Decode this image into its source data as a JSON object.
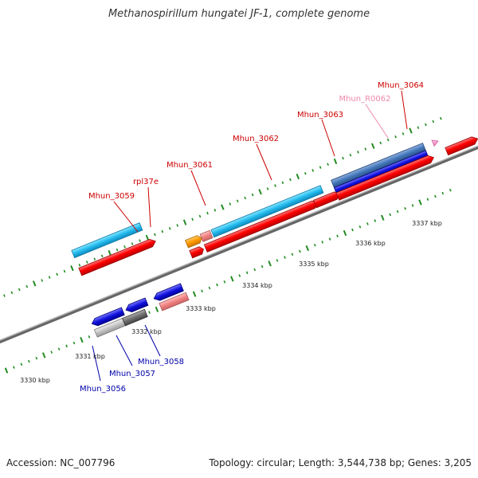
{
  "title": "Methanospirillum hungatei JF-1, complete genome",
  "footer": {
    "accession": "Accession: NC_007796",
    "topology": "Topology: circular; Length: 3,544,738 bp; Genes: 3,205"
  },
  "colors": {
    "forward_label": "#cc0000",
    "reverse_label": "#0000aa",
    "rna_label": "#ee88aa",
    "backbone": "#888888",
    "tick": "#228b22"
  },
  "scale": {
    "labels": [
      "3330 kbp",
      "3331 kbp",
      "3332 kbp",
      "3333 kbp",
      "3334 kbp",
      "3335 kbp",
      "3336 kbp",
      "3337 kbp"
    ]
  },
  "forward_genes": [
    {
      "label": "Mhun_3059",
      "color": "#ff9900"
    },
    {
      "label": "rpl37e",
      "color": "#f08080"
    },
    {
      "label": "Mhun_3061",
      "color": "#22bbee"
    },
    {
      "label": "Mhun_3062",
      "color": "#ff0000"
    },
    {
      "label": "Mhun_3063",
      "color": "#4477bb"
    },
    {
      "label": "Mhun_R0062",
      "color": "#ff99cc"
    },
    {
      "label": "Mhun_3064",
      "color": "#ff0000"
    }
  ],
  "reverse_genes": [
    {
      "label": "Mhun_3056",
      "color": "#2222dd"
    },
    {
      "label": "Mhun_3057",
      "color": "#777777"
    },
    {
      "label": "Mhun_3058",
      "color": "#2222dd"
    }
  ]
}
